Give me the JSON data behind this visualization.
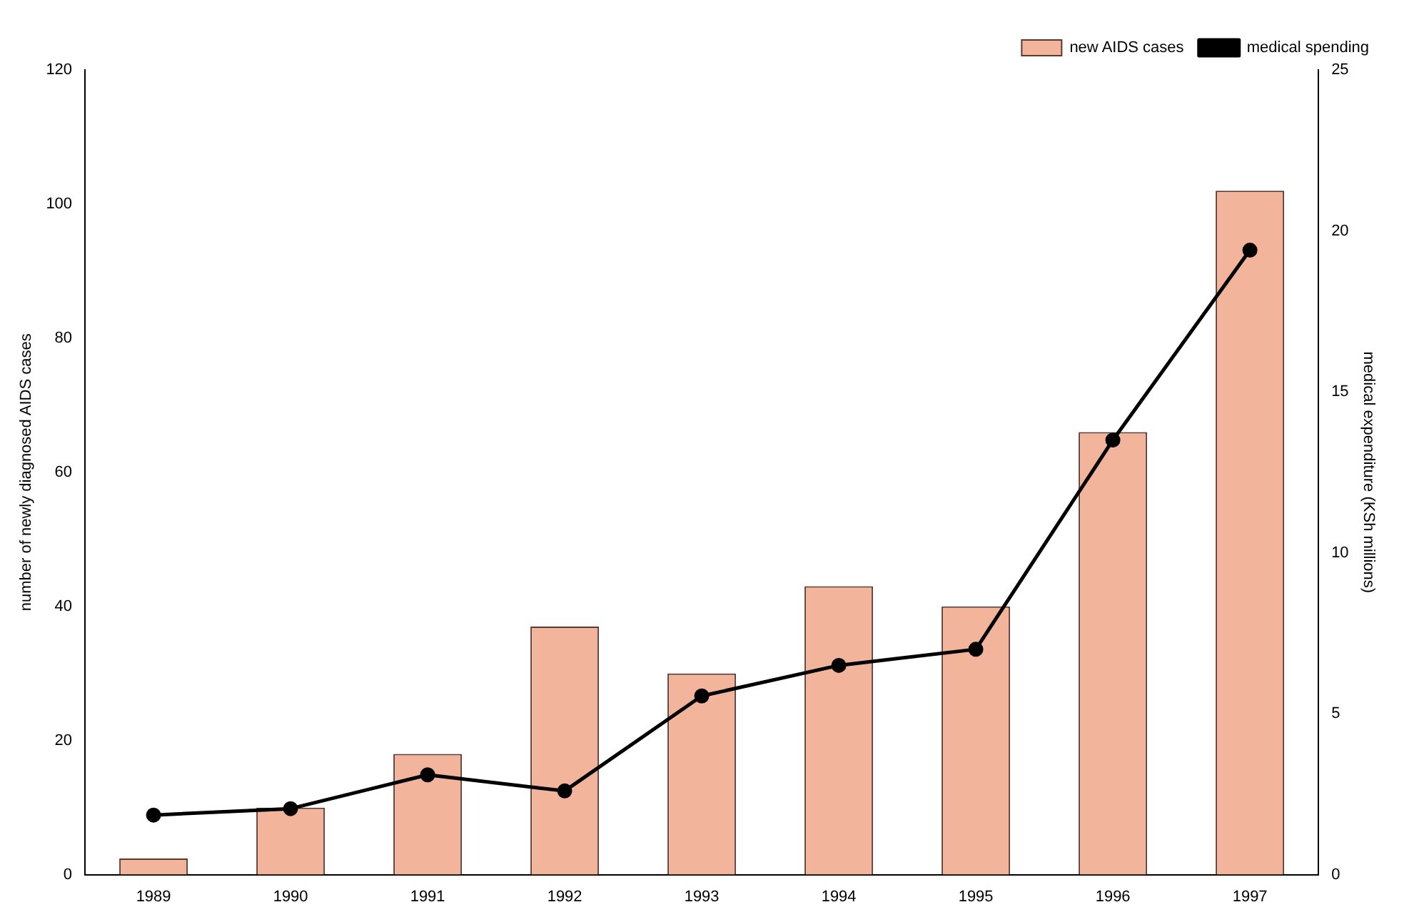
{
  "chart_data": {
    "type": "bar",
    "categories": [
      "1989",
      "1990",
      "1991",
      "1992",
      "1993",
      "1994",
      "1995",
      "1996",
      "1997"
    ],
    "series": [
      {
        "name": "new AIDS cases",
        "color": "#f2b49a",
        "values": [
          2.4,
          10,
          18,
          37,
          30,
          43,
          40,
          66,
          102
        ]
      },
      {
        "name": "medical spending",
        "type": "line",
        "axis": "y2",
        "color": "#000000",
        "values": [
          1.85,
          2.05,
          3.1,
          2.6,
          5.55,
          6.5,
          7.0,
          13.5,
          19.4
        ]
      }
    ],
    "ylabel": "number of newly diagnosed AIDS cases",
    "y2label": "medical expenditure (KSh millions)",
    "ylim": [
      0,
      120
    ],
    "yticks": [
      0,
      20,
      40,
      60,
      80,
      100,
      120
    ],
    "y2lim": [
      0,
      25
    ],
    "y2ticks": [
      0,
      5,
      10,
      15,
      20,
      25
    ],
    "legend": "top right",
    "marker": "circle",
    "line_style": "solid",
    "grid": false
  }
}
